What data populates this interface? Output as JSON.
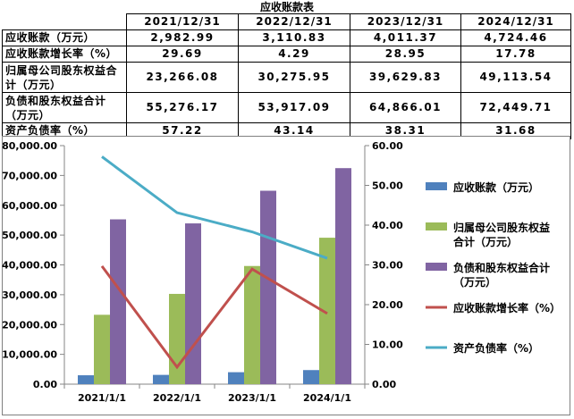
{
  "table": {
    "title": "应收账款表",
    "columns": [
      "2021/12/31",
      "2022/12/31",
      "2023/12/31",
      "2024/12/31"
    ],
    "rows": [
      {
        "label": "应收账款（万元）",
        "values": [
          "2,982.99",
          "3,110.83",
          "4,011.37",
          "4,724.46"
        ]
      },
      {
        "label": "应收账款增长率（%）",
        "values": [
          "29.69",
          "4.29",
          "28.95",
          "17.78"
        ]
      },
      {
        "label": "归属母公司股东权益合计（万元）",
        "values": [
          "23,266.08",
          "30,275.95",
          "39,629.83",
          "49,113.54"
        ]
      },
      {
        "label": "负债和股东权益合计（万元）",
        "values": [
          "55,276.17",
          "53,917.09",
          "64,866.01",
          "72,449.71"
        ]
      },
      {
        "label": "资产负债率（%）",
        "values": [
          "57.22",
          "43.14",
          "38.31",
          "31.68"
        ]
      }
    ]
  },
  "chart_data": {
    "type": "bar",
    "categories": [
      "2021/1/1",
      "2022/1/1",
      "2023/1/1",
      "2024/1/1"
    ],
    "series": [
      {
        "name": "应收账款（万元）",
        "kind": "bar",
        "axis": "left",
        "color": "#4f81bd",
        "values": [
          2982.99,
          3110.83,
          4011.37,
          4724.46
        ]
      },
      {
        "name": "归属母公司股东权益合计（万元）",
        "kind": "bar",
        "axis": "left",
        "color": "#9bbb59",
        "values": [
          23266.08,
          30275.95,
          39629.83,
          49113.54
        ]
      },
      {
        "name": "负债和股东权益合计（万元）",
        "kind": "bar",
        "axis": "left",
        "color": "#8064a2",
        "values": [
          55276.17,
          53917.09,
          64866.01,
          72449.71
        ]
      },
      {
        "name": "应收账款增长率（%）",
        "kind": "line",
        "axis": "right",
        "color": "#c0504d",
        "values": [
          29.69,
          4.29,
          28.95,
          17.78
        ]
      },
      {
        "name": "资产负债率（%）",
        "kind": "line",
        "axis": "right",
        "color": "#4bacc6",
        "values": [
          57.22,
          43.14,
          38.31,
          31.68
        ]
      }
    ],
    "y_left": {
      "min": 0,
      "max": 80000,
      "step": 10000,
      "ticks": [
        "0.00",
        "10,000.00",
        "20,000.00",
        "30,000.00",
        "40,000.00",
        "50,000.00",
        "60,000.00",
        "70,000.00",
        "80,000.00"
      ]
    },
    "y_right": {
      "min": 0,
      "max": 60,
      "step": 10,
      "ticks": [
        "0.00",
        "10.00",
        "20.00",
        "30.00",
        "40.00",
        "50.00",
        "60.00"
      ]
    },
    "legend": {
      "position": "right",
      "entries": [
        {
          "lines": [
            "应收账款（万元）"
          ],
          "kind": "bar",
          "color": "#4f81bd"
        },
        {
          "lines": [
            "归属母公司股东权益",
            "合计（万元）"
          ],
          "kind": "bar",
          "color": "#9bbb59"
        },
        {
          "lines": [
            "负债和股东权益合计",
            "（万元）"
          ],
          "kind": "bar",
          "color": "#8064a2"
        },
        {
          "lines": [
            "应收账款增长率（%）"
          ],
          "kind": "line",
          "color": "#c0504d"
        },
        {
          "lines": [
            "资产负债率（%）"
          ],
          "kind": "line",
          "color": "#4bacc6"
        }
      ]
    },
    "grid": false
  }
}
